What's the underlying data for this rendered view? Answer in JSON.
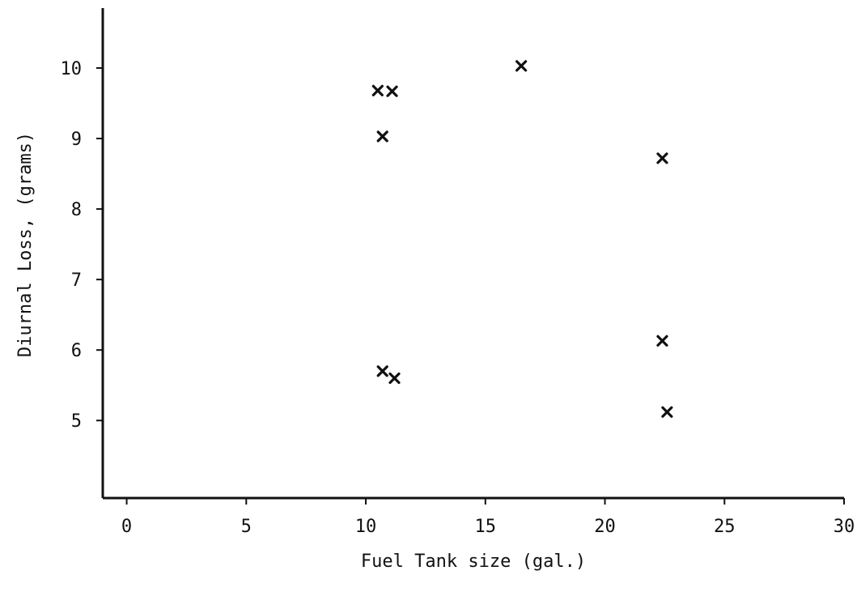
{
  "chart_data": {
    "type": "scatter",
    "title": "",
    "xlabel": "Fuel Tank size (gal.)",
    "ylabel": "Diurnal Loss, (grams)",
    "xlim": [
      -1,
      30
    ],
    "ylim": [
      3.9,
      10.85
    ],
    "xticks": [
      0,
      5,
      10,
      15,
      20,
      25,
      30
    ],
    "yticks": [
      5,
      6,
      7,
      8,
      9,
      10
    ],
    "marker": "x",
    "grid": false,
    "legend": false,
    "series": [
      {
        "points": [
          {
            "x": 10.5,
            "y": 9.68
          },
          {
            "x": 11.1,
            "y": 9.67
          },
          {
            "x": 16.5,
            "y": 10.03
          },
          {
            "x": 10.7,
            "y": 9.03
          },
          {
            "x": 22.4,
            "y": 8.72
          },
          {
            "x": 10.7,
            "y": 5.7
          },
          {
            "x": 11.2,
            "y": 5.6
          },
          {
            "x": 22.4,
            "y": 6.13
          },
          {
            "x": 22.6,
            "y": 5.12
          }
        ]
      }
    ]
  }
}
